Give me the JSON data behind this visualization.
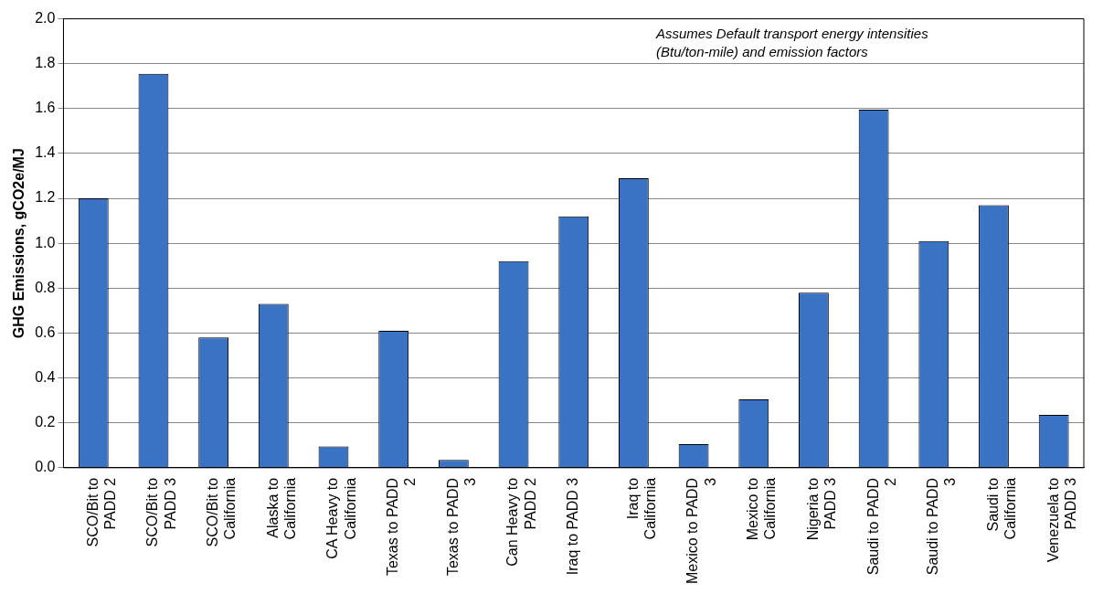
{
  "chart_data": {
    "type": "bar",
    "ylabel": "GHG Emissions, gCO2e/MJ",
    "categories": [
      "SCO/Bit to PADD 2",
      "SCO/Bit to PADD 3",
      "SCO/Bit to California",
      "Alaska to California",
      "CA Heavy to California",
      "Texas to PADD 2",
      "Texas to PADD 3",
      "Can Heavy to PADD 2",
      "Iraq to PADD 3",
      "Iraq to California",
      "Mexico to PADD 3",
      "Mexico to California",
      "Nigeria to PADD 3",
      "Saudi to PADD 2",
      "Saudi to PADD 3",
      "Saudi to California",
      "Venezuela to PADD 3"
    ],
    "values": [
      1.2,
      1.755,
      0.58,
      0.73,
      0.095,
      0.61,
      0.035,
      0.92,
      1.12,
      1.29,
      0.105,
      0.305,
      0.78,
      1.595,
      1.01,
      1.17,
      0.235
    ],
    "color": "#3a73c4",
    "ylim": [
      0,
      2
    ],
    "yticks": [
      {
        "value": 0,
        "label": "0.0"
      },
      {
        "value": 0.2,
        "label": "0.2"
      },
      {
        "value": 0.4,
        "label": "0.4"
      },
      {
        "value": 0.6,
        "label": "0.6"
      },
      {
        "value": 0.8,
        "label": "0.8"
      },
      {
        "value": 1,
        "label": "1.0"
      },
      {
        "value": 1.2,
        "label": "1.2"
      },
      {
        "value": 1.4,
        "label": "1.4"
      },
      {
        "value": 1.6,
        "label": "1.6"
      },
      {
        "value": 1.8,
        "label": "1.8"
      },
      {
        "value": 2,
        "label": "2.0"
      }
    ],
    "grid": "y",
    "legend": false,
    "annotations": [
      "Assumes Default transport energy intensities (Btu/ton-mile) and emission factors"
    ]
  }
}
